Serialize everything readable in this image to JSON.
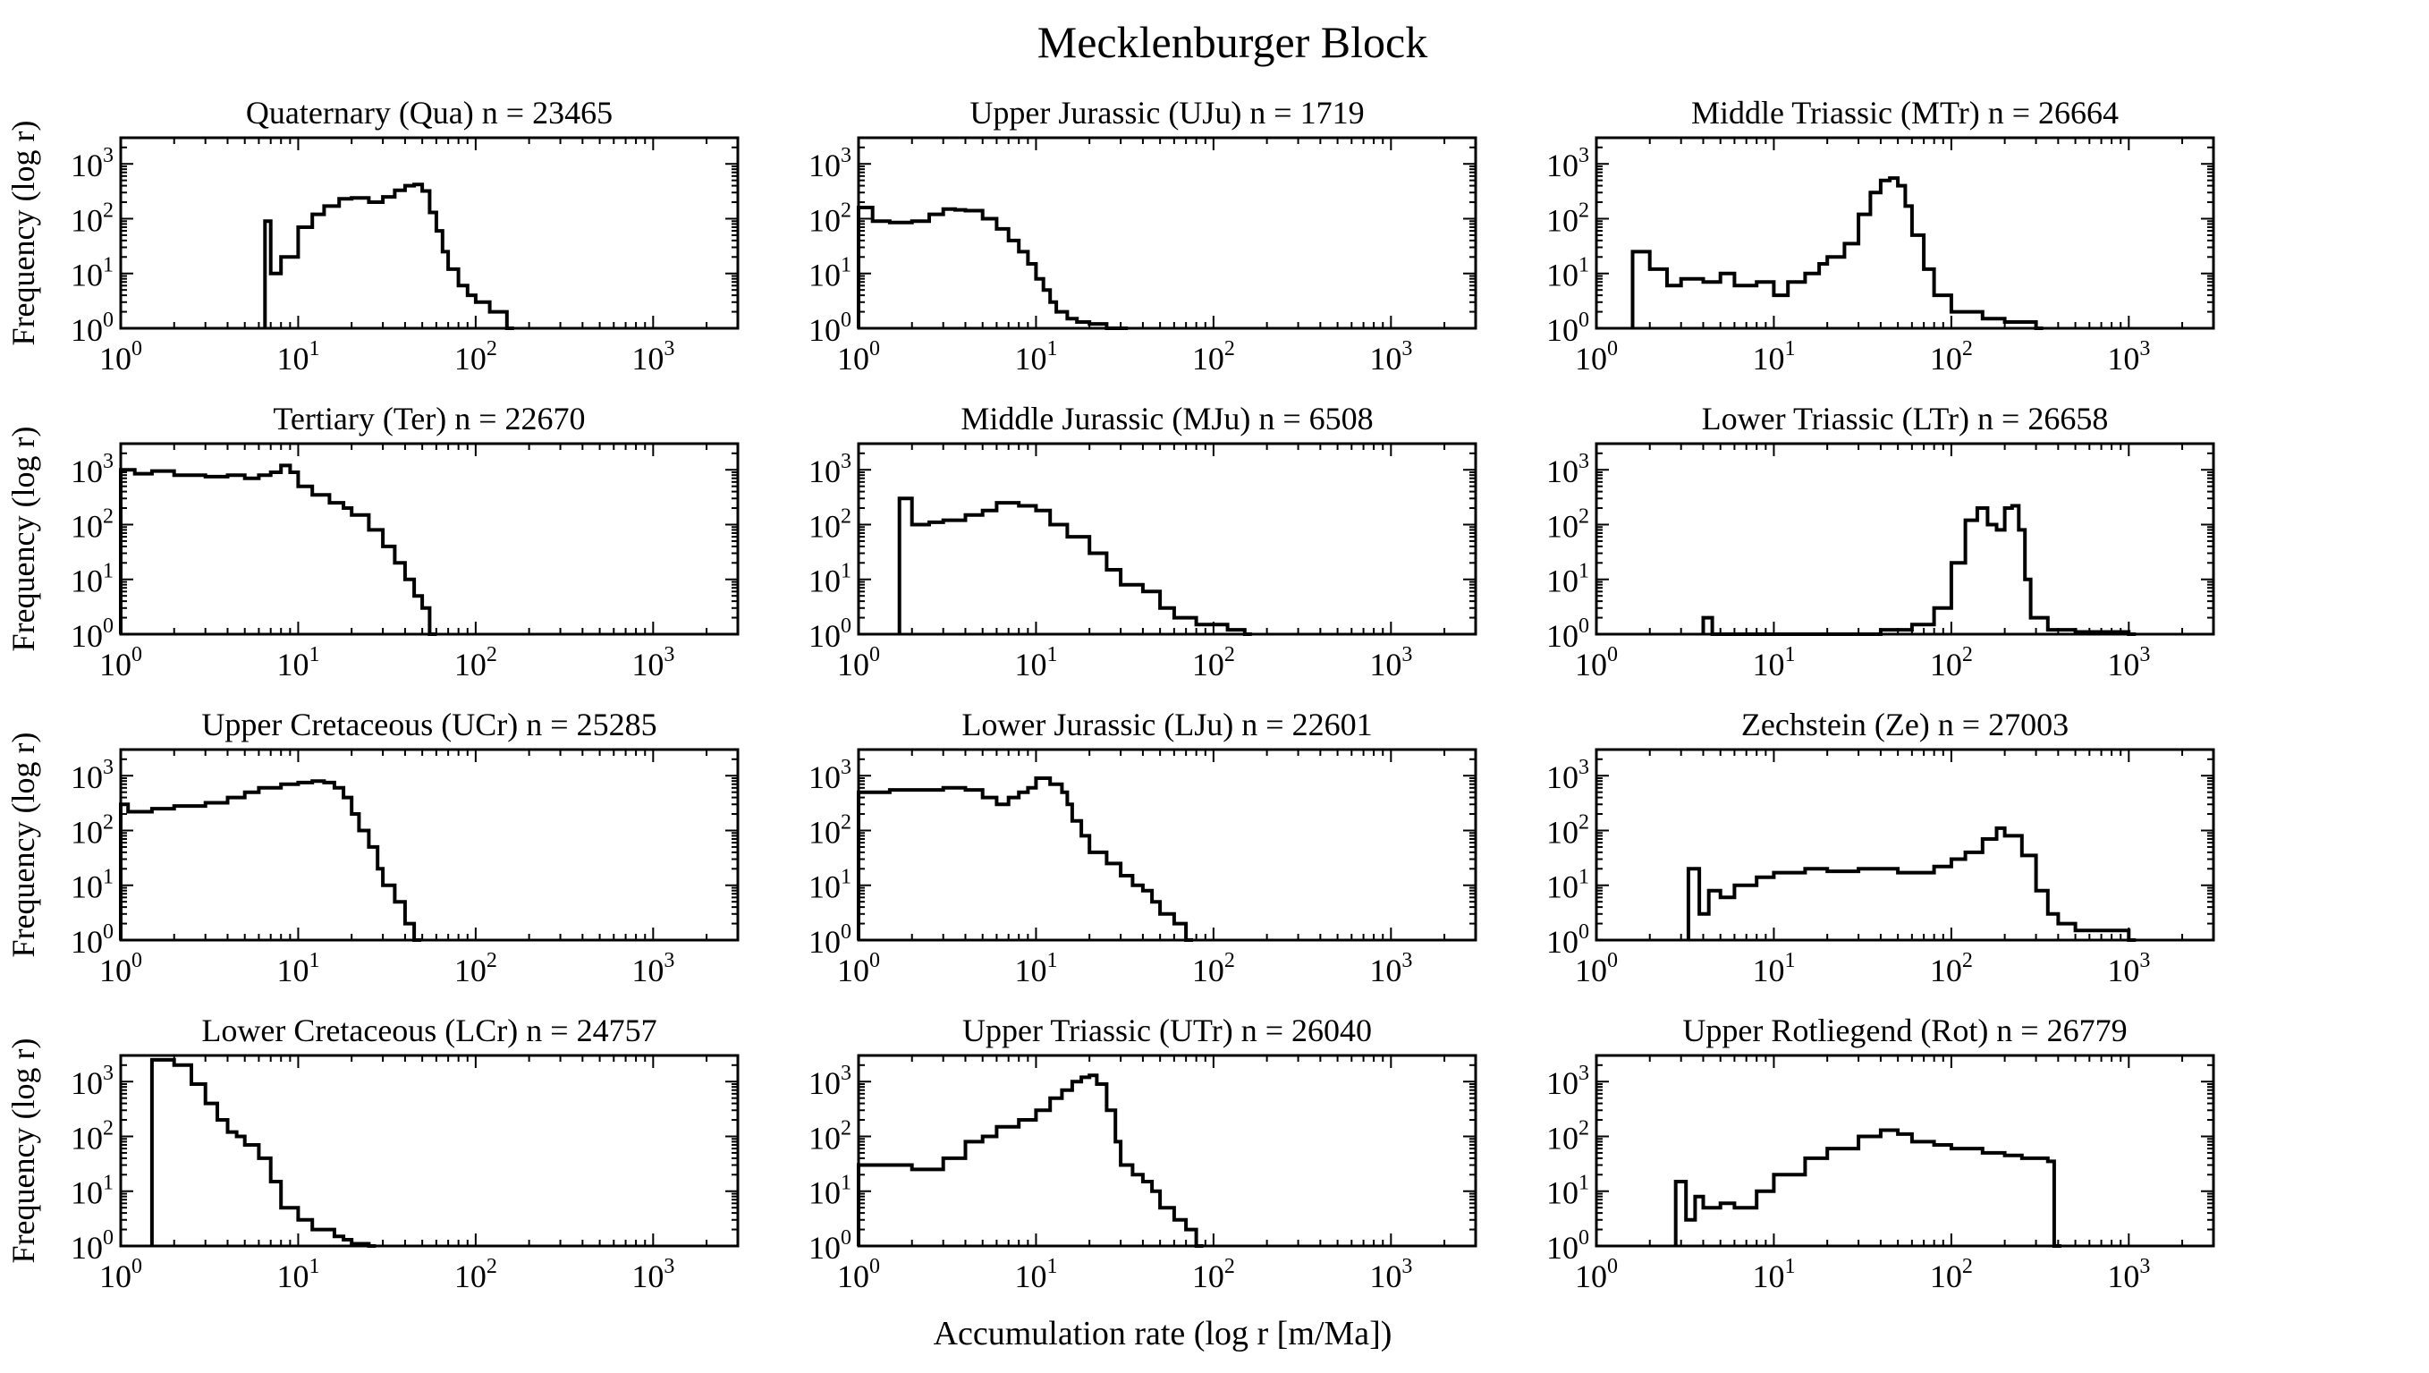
{
  "chart_data": {
    "type": "histogram-grid",
    "title": "Mecklenburger Block",
    "xlabel": "Accumulation rate (log r [m/Ma])",
    "ylabel": "Frequency (log r)",
    "x_scale": "log",
    "y_scale": "log",
    "xlim": [
      1,
      3000
    ],
    "ylim": [
      1,
      3000
    ],
    "x_ticks": [
      1,
      10,
      100,
      1000
    ],
    "y_ticks": [
      1,
      10,
      100,
      1000
    ],
    "tick_base": "10",
    "tick_exponents": [
      "0",
      "1",
      "2",
      "3"
    ],
    "panels": [
      {
        "title": "Quaternary (Qua) n = 23465",
        "x": [
          6.5,
          7,
          8,
          10,
          12,
          14,
          17,
          20,
          25,
          30,
          35,
          40,
          45,
          50,
          55,
          60,
          65,
          70,
          80,
          90,
          100,
          120,
          150
        ],
        "y": [
          90,
          10,
          20,
          70,
          120,
          170,
          230,
          240,
          200,
          250,
          330,
          400,
          420,
          320,
          130,
          60,
          25,
          12,
          6,
          4,
          3,
          2,
          1
        ]
      },
      {
        "title": "Upper Jurassic (UJu) n = 1719",
        "x": [
          1,
          1.2,
          1.5,
          2,
          2.5,
          3,
          3.5,
          4,
          5,
          6,
          7,
          8,
          9,
          10,
          11,
          12,
          13,
          14,
          15,
          17,
          20,
          25,
          30
        ],
        "y": [
          160,
          90,
          85,
          90,
          120,
          150,
          145,
          140,
          100,
          65,
          40,
          25,
          15,
          8,
          5,
          3,
          2,
          2,
          1.5,
          1.3,
          1.2,
          1,
          1
        ]
      },
      {
        "title": "Middle Triassic (MTr) n = 26664",
        "x": [
          1.6,
          2,
          2.5,
          3,
          4,
          5,
          6,
          8,
          10,
          12,
          15,
          18,
          20,
          25,
          30,
          35,
          40,
          45,
          50,
          55,
          60,
          70,
          80,
          100,
          150,
          200,
          300
        ],
        "y": [
          25,
          12,
          6,
          8,
          7,
          10,
          6,
          7,
          4,
          7,
          10,
          15,
          20,
          35,
          120,
          300,
          500,
          550,
          400,
          170,
          50,
          12,
          4,
          2,
          1.5,
          1.3,
          1
        ]
      },
      {
        "title": "Tertiary (Ter) n = 22670",
        "x": [
          1,
          1.2,
          1.5,
          2,
          3,
          4,
          5,
          6,
          7,
          8,
          9,
          10,
          12,
          15,
          18,
          20,
          25,
          30,
          35,
          40,
          45,
          50,
          55
        ],
        "y": [
          1000,
          850,
          950,
          800,
          750,
          800,
          700,
          800,
          900,
          1200,
          900,
          500,
          350,
          250,
          200,
          150,
          80,
          40,
          20,
          10,
          5,
          3,
          1
        ]
      },
      {
        "title": "Middle Jurassic (MJu) n = 6508",
        "x": [
          1.7,
          2,
          2.5,
          3,
          4,
          5,
          6,
          8,
          10,
          12,
          15,
          20,
          25,
          30,
          40,
          50,
          60,
          70,
          80,
          100,
          120,
          150
        ],
        "y": [
          300,
          100,
          110,
          120,
          150,
          180,
          250,
          220,
          180,
          100,
          60,
          30,
          15,
          8,
          6,
          3,
          2,
          2,
          1.5,
          1.5,
          1.2,
          1
        ]
      },
      {
        "title": "Lower Triassic (LTr) n = 26658",
        "x": [
          4,
          4.5,
          10,
          20,
          40,
          60,
          80,
          100,
          120,
          140,
          160,
          180,
          200,
          220,
          240,
          260,
          280,
          350,
          500,
          1000
        ],
        "y": [
          2,
          1,
          1,
          1,
          1.2,
          1.5,
          3,
          20,
          120,
          200,
          100,
          80,
          200,
          220,
          80,
          10,
          2,
          1.2,
          1.1,
          1
        ]
      },
      {
        "title": "Upper Cretaceous (UCr) n = 25285",
        "x": [
          1,
          1.1,
          1.5,
          2,
          3,
          4,
          5,
          6,
          8,
          10,
          12,
          14,
          16,
          18,
          20,
          22,
          25,
          28,
          30,
          35,
          40,
          45
        ],
        "y": [
          300,
          220,
          250,
          280,
          320,
          400,
          500,
          600,
          700,
          750,
          800,
          750,
          600,
          400,
          200,
          100,
          50,
          20,
          10,
          5,
          2,
          1
        ]
      },
      {
        "title": "Lower Jurassic (LJu) n = 22601",
        "x": [
          1,
          1.5,
          2,
          3,
          4,
          5,
          6,
          7,
          8,
          9,
          10,
          12,
          14,
          15,
          16,
          18,
          20,
          25,
          30,
          35,
          40,
          45,
          50,
          60,
          70
        ],
        "y": [
          500,
          550,
          550,
          600,
          550,
          400,
          300,
          400,
          500,
          600,
          900,
          700,
          500,
          300,
          150,
          80,
          40,
          25,
          15,
          10,
          8,
          5,
          3,
          2,
          1
        ]
      },
      {
        "title": "Zechstein (Ze) n = 27003",
        "x": [
          3.3,
          3.8,
          4.3,
          5,
          6,
          8,
          10,
          15,
          20,
          30,
          50,
          80,
          100,
          120,
          150,
          180,
          200,
          250,
          300,
          350,
          400,
          500,
          700,
          1000
        ],
        "y": [
          20,
          3,
          8,
          6,
          10,
          14,
          17,
          20,
          18,
          20,
          17,
          22,
          30,
          40,
          70,
          110,
          80,
          35,
          8,
          3,
          2,
          1.5,
          1.5,
          1
        ]
      },
      {
        "title": "Lower Cretaceous (LCr) n = 24757",
        "x": [
          1.5,
          2,
          2.5,
          3,
          3.5,
          4,
          4.5,
          5,
          6,
          7,
          8,
          10,
          12,
          14,
          16,
          18,
          20,
          25
        ],
        "y": [
          2500,
          2000,
          900,
          400,
          200,
          120,
          100,
          70,
          40,
          15,
          5,
          3,
          2,
          2,
          1.5,
          1.3,
          1.1,
          1
        ]
      },
      {
        "title": "Upper Triassic (UTr) n = 26040",
        "x": [
          1,
          2,
          3,
          4,
          5,
          6,
          8,
          10,
          12,
          14,
          16,
          18,
          20,
          22,
          25,
          28,
          30,
          35,
          40,
          45,
          50,
          60,
          70,
          80
        ],
        "y": [
          30,
          25,
          40,
          80,
          100,
          150,
          200,
          300,
          500,
          700,
          1000,
          1200,
          1300,
          900,
          300,
          80,
          30,
          20,
          15,
          10,
          5,
          3,
          2,
          1
        ]
      },
      {
        "title": "Upper Rotliegend (Rot) n = 26779",
        "x": [
          2.8,
          3.2,
          3.6,
          4,
          5,
          6,
          8,
          10,
          15,
          20,
          30,
          40,
          50,
          60,
          80,
          100,
          150,
          200,
          250,
          300,
          350,
          380
        ],
        "y": [
          15,
          3,
          8,
          5,
          6,
          5,
          10,
          20,
          40,
          60,
          100,
          130,
          110,
          80,
          70,
          60,
          50,
          45,
          40,
          40,
          35,
          1
        ]
      }
    ]
  }
}
